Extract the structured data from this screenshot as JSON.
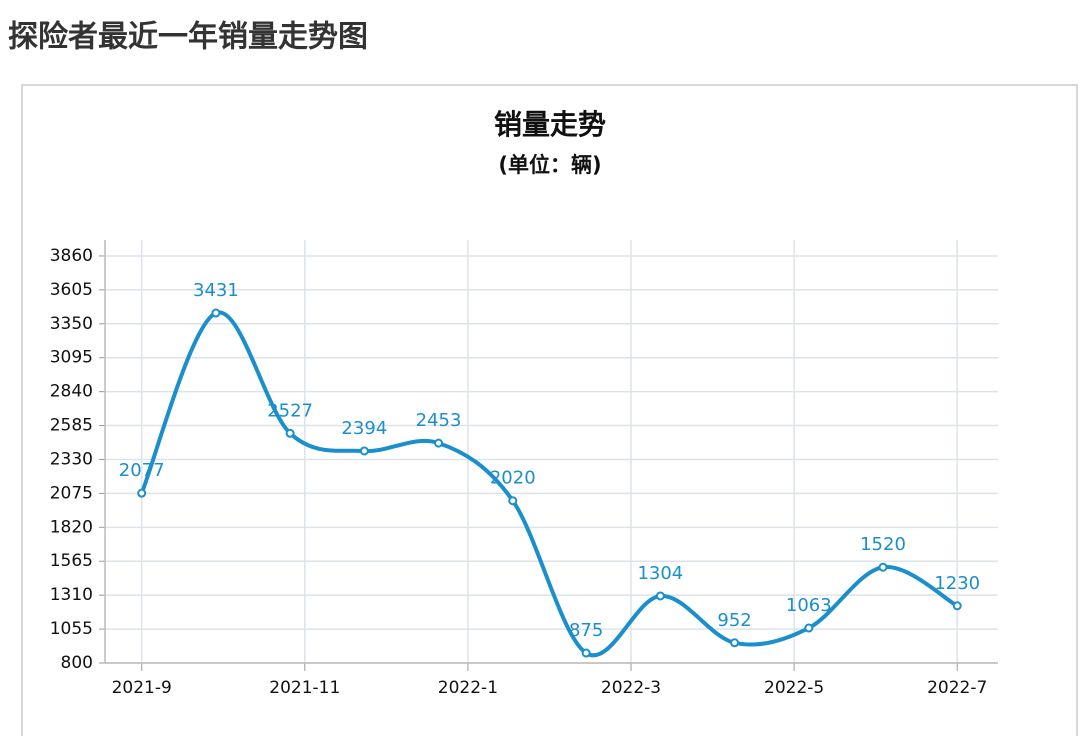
{
  "page_title": "探险者最近一年销量走势图",
  "chart_data": {
    "type": "line",
    "title": "销量走势",
    "subtitle": "(单位：辆)",
    "x": [
      0,
      0.91,
      1.82,
      2.73,
      3.64,
      4.55,
      5.45,
      6.36,
      7.27,
      8.18,
      9.09,
      10
    ],
    "series": [
      {
        "name": "销量",
        "color": "#1a8fcc",
        "values": [
          2077,
          3431,
          2527,
          2394,
          2453,
          2020,
          875,
          1304,
          952,
          1063,
          1520,
          1230
        ]
      }
    ],
    "xlim": [
      -0.45,
      10.5
    ],
    "xticks": [
      {
        "value": 0,
        "label": "2021-9"
      },
      {
        "value": 2,
        "label": "2021-11"
      },
      {
        "value": 4,
        "label": "2022-1"
      },
      {
        "value": 6,
        "label": "2022-3"
      },
      {
        "value": 8,
        "label": "2022-5"
      },
      {
        "value": 10,
        "label": "2022-7"
      }
    ],
    "ylim": [
      800,
      3980
    ],
    "yticks": [
      800,
      1055,
      1310,
      1565,
      1820,
      2075,
      2330,
      2585,
      2840,
      3095,
      3350,
      3605,
      3860
    ],
    "grid": true,
    "data_labels": true
  }
}
